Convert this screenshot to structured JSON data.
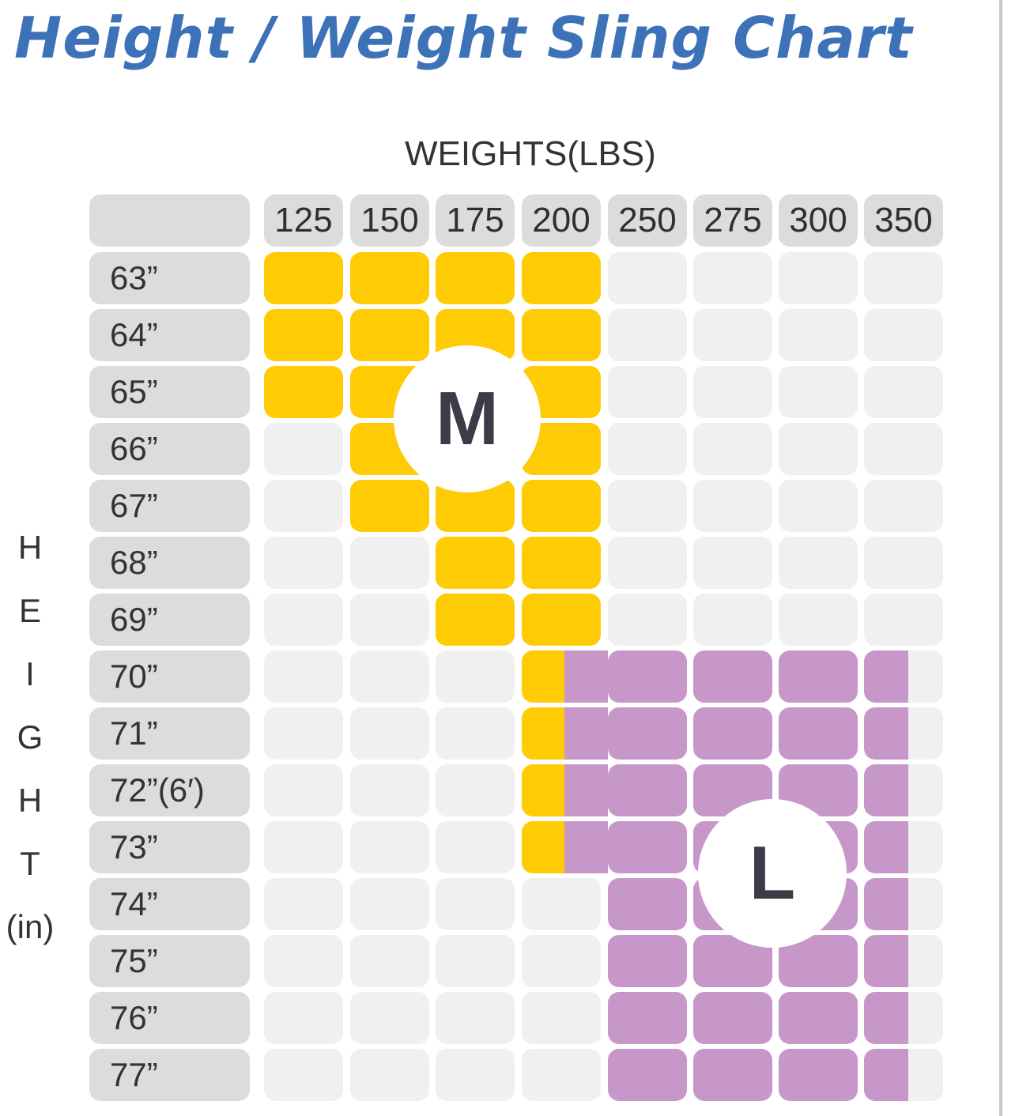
{
  "title": "Height / Weight Sling Chart",
  "x_axis_label": "WEIGHTS(LBS)",
  "y_axis_label_letters": [
    "H",
    "E",
    "I",
    "G",
    "H",
    "T",
    "(in)"
  ],
  "colors": {
    "title": "#3e72b8",
    "M": "#ffcb05",
    "L": "#c897ca",
    "empty": "#f0f0f0",
    "header": "#dcdcdc"
  },
  "badges": {
    "M": "M",
    "L": "L"
  },
  "chart_data": {
    "type": "table",
    "title": "Height / Weight Sling Chart",
    "xlabel": "WEIGHTS(LBS)",
    "ylabel": "HEIGHT (in)",
    "columns": [
      "125",
      "150",
      "175",
      "200",
      "250",
      "275",
      "300",
      "350"
    ],
    "rows": [
      "63”",
      "64”",
      "65”",
      "66”",
      "67”",
      "68”",
      "69”",
      "70”",
      "71”",
      "72”(6′)",
      "73”",
      "74”",
      "75”",
      "76”",
      "77”"
    ],
    "sizes": [
      [
        "M",
        "M",
        "M",
        "M",
        "",
        "",
        "",
        ""
      ],
      [
        "M",
        "M",
        "M",
        "M",
        "",
        "",
        "",
        ""
      ],
      [
        "M",
        "M",
        "M",
        "M",
        "",
        "",
        "",
        ""
      ],
      [
        "",
        "M",
        "M",
        "M",
        "",
        "",
        "",
        ""
      ],
      [
        "",
        "M",
        "M",
        "M",
        "",
        "",
        "",
        ""
      ],
      [
        "",
        "",
        "M",
        "M",
        "",
        "",
        "",
        ""
      ],
      [
        "",
        "",
        "M",
        "M",
        "",
        "",
        "",
        ""
      ],
      [
        "",
        "",
        "",
        "M/L",
        "L",
        "L",
        "L",
        "L"
      ],
      [
        "",
        "",
        "",
        "M/L",
        "L",
        "L",
        "L",
        "L"
      ],
      [
        "",
        "",
        "",
        "M/L",
        "L",
        "L",
        "L",
        "L"
      ],
      [
        "",
        "",
        "",
        "M/L",
        "L",
        "L",
        "L",
        "L"
      ],
      [
        "",
        "",
        "",
        "",
        "L",
        "L",
        "L",
        "L"
      ],
      [
        "",
        "",
        "",
        "",
        "L",
        "L",
        "L",
        "L"
      ],
      [
        "",
        "",
        "",
        "",
        "L",
        "L",
        "L",
        "L"
      ],
      [
        "",
        "",
        "",
        "",
        "L",
        "L",
        "L",
        "L"
      ]
    ]
  }
}
